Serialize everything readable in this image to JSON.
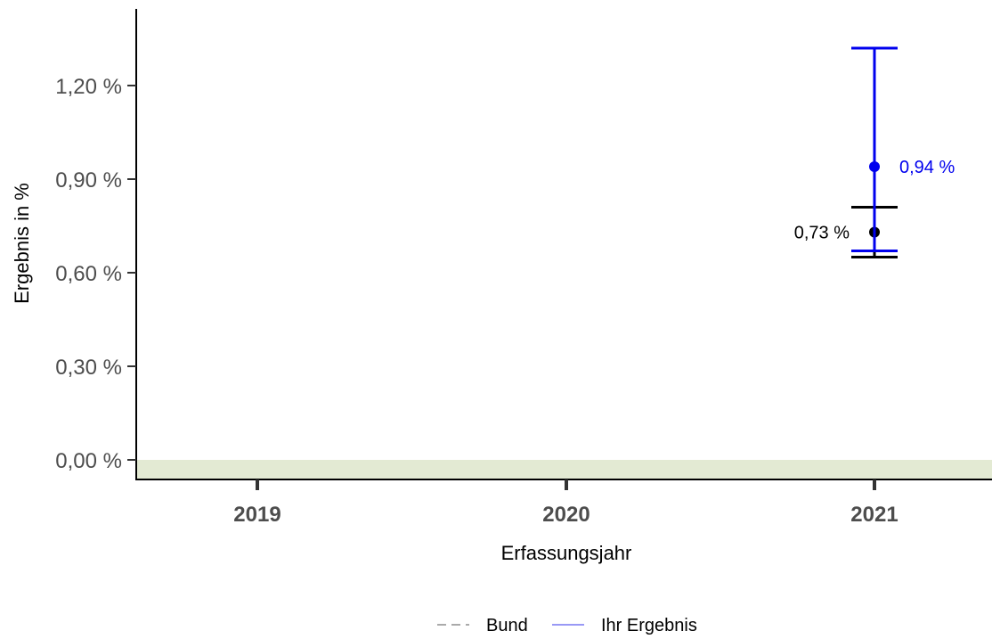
{
  "chart_data": {
    "type": "scatter",
    "xlabel": "Erfassungsjahr",
    "ylabel": "Ergebnis in %",
    "categories": [
      "2019",
      "2020",
      "2021"
    ],
    "ylim": [
      -0.07,
      1.45
    ],
    "yticks": [
      0.0,
      0.3,
      0.6,
      0.9,
      1.2
    ],
    "ytick_labels": [
      "0,00 %",
      "0,30 %",
      "0,60 %",
      "0,90 %",
      "1,20 %"
    ],
    "reference_band": {
      "from": -0.07,
      "to": 0.0,
      "color": "#e3ead3"
    },
    "grid": false,
    "legend_position": "bottom",
    "series": [
      {
        "name": "Bund",
        "color": "#000000",
        "legend_color": "#aaaaaa",
        "legend_style": "dashed",
        "points": [
          {
            "x": "2021",
            "y": 0.73,
            "ci_low": 0.65,
            "ci_high": 0.81,
            "label": "0,73 %",
            "label_side": "left"
          }
        ]
      },
      {
        "name": "Ihr Ergebnis",
        "color": "#0000ee",
        "legend_color": "#9999f5",
        "legend_style": "solid",
        "points": [
          {
            "x": "2021",
            "y": 0.94,
            "ci_low": 0.67,
            "ci_high": 1.32,
            "label": "0,94 %",
            "label_side": "right"
          }
        ]
      }
    ]
  }
}
